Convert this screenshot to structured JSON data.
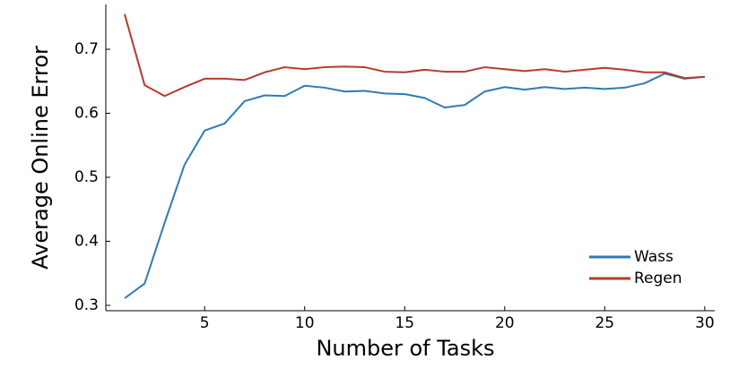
{
  "chart_data": {
    "type": "line",
    "xlabel": "Number of Tasks",
    "ylabel": "Average Online Error",
    "x": [
      1,
      2,
      3,
      4,
      5,
      6,
      7,
      8,
      9,
      10,
      11,
      12,
      13,
      14,
      15,
      16,
      17,
      18,
      19,
      20,
      21,
      22,
      23,
      24,
      25,
      26,
      27,
      28,
      29,
      30
    ],
    "series": [
      {
        "name": "Wass",
        "color": "#2e7cb0",
        "values": [
          0.311,
          0.334,
          0.429,
          0.52,
          0.573,
          0.584,
          0.619,
          0.628,
          0.627,
          0.643,
          0.64,
          0.634,
          0.635,
          0.631,
          0.63,
          0.624,
          0.609,
          0.613,
          0.634,
          0.641,
          0.637,
          0.641,
          0.638,
          0.64,
          0.638,
          0.64,
          0.647,
          0.662,
          0.654,
          0.657
        ]
      },
      {
        "name": "Regen",
        "color": "#b8392b",
        "values": [
          0.755,
          0.644,
          0.627,
          0.641,
          0.654,
          0.654,
          0.652,
          0.664,
          0.672,
          0.669,
          0.672,
          0.673,
          0.672,
          0.665,
          0.664,
          0.668,
          0.665,
          0.665,
          0.672,
          0.669,
          0.666,
          0.669,
          0.665,
          0.668,
          0.671,
          0.668,
          0.664,
          0.664,
          0.655,
          0.657
        ]
      }
    ],
    "xlim": [
      0.06,
      30.5
    ],
    "xticks": [
      5,
      10,
      15,
      20,
      25,
      30
    ],
    "ylim": [
      0.2916,
      0.77
    ],
    "yticks": [
      0.3,
      0.4,
      0.5,
      0.6,
      0.7
    ],
    "grid": false,
    "legend": "bottom-right"
  }
}
